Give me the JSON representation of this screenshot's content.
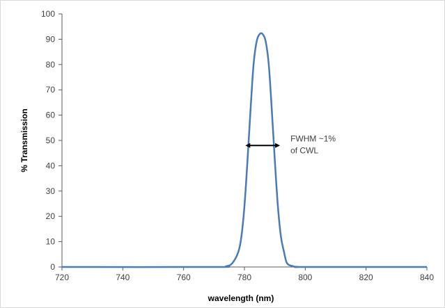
{
  "chart_data": {
    "type": "line",
    "title": "",
    "xlabel": "wavelength (nm)",
    "ylabel": "% Transmission",
    "xlim": [
      720,
      840
    ],
    "ylim": [
      0,
      100
    ],
    "x_ticks": [
      720,
      740,
      760,
      780,
      800,
      820,
      840
    ],
    "y_ticks": [
      0,
      10,
      20,
      30,
      40,
      50,
      60,
      70,
      80,
      90,
      100
    ],
    "grid": false,
    "legend": "none",
    "series": [
      {
        "color": "#4a7ab8",
        "x": [
          720,
          770,
          774,
          776,
          778,
          779,
          780,
          781,
          782,
          783,
          784,
          785,
          786,
          787,
          788,
          789,
          790,
          791,
          792,
          793,
          794,
          796,
          798,
          800,
          840
        ],
        "y": [
          0,
          0,
          0.3,
          1.5,
          6,
          12,
          24,
          42,
          62,
          80,
          89,
          92,
          92,
          89,
          80,
          62,
          42,
          24,
          12,
          6,
          1.5,
          0.3,
          0,
          0,
          0
        ]
      }
    ],
    "annotations": [
      {
        "type": "double-arrow",
        "x1": 780.3,
        "x2": 791.7,
        "y": 48,
        "label_lines": [
          "FWHM ~1%",
          "of CWL"
        ]
      }
    ]
  }
}
